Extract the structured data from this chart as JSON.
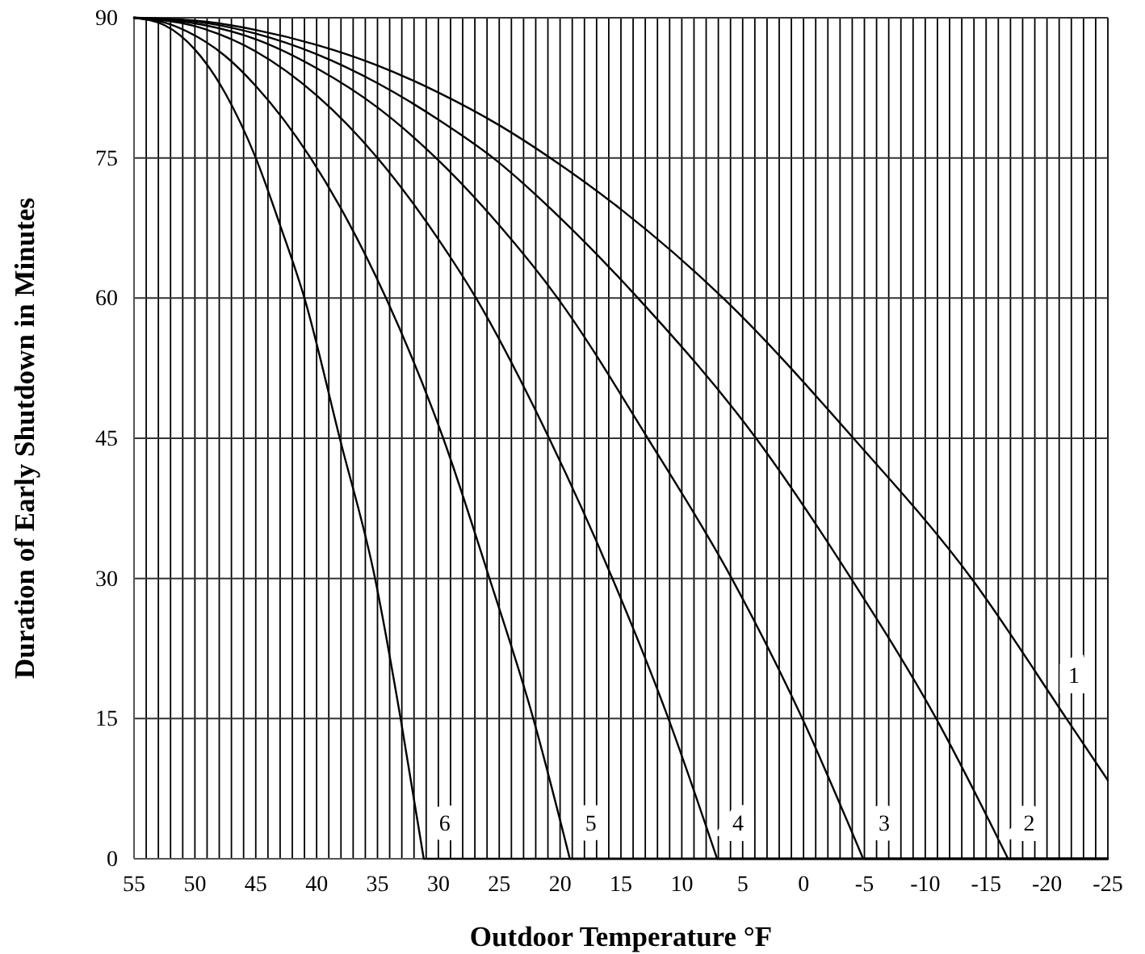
{
  "chart_data": {
    "type": "line",
    "xlabel": "Outdoor Temperature °F",
    "ylabel": "Duration of Early Shutdown in Minutes",
    "xlim": [
      55,
      -25
    ],
    "ylim": [
      0,
      90
    ],
    "xticks": [
      55,
      {
        "value": 54,
        "label": null
      },
      {
        "value": 53,
        "label": null
      },
      {
        "value": 52,
        "label": null
      },
      {
        "value": 51,
        "label": null
      },
      50,
      {
        "value": 49,
        "label": null
      },
      {
        "value": 48,
        "label": null
      },
      {
        "value": 47,
        "label": null
      },
      {
        "value": 46,
        "label": null
      },
      45,
      {
        "value": 44,
        "label": null
      },
      {
        "value": 43,
        "label": null
      },
      {
        "value": 42,
        "label": null
      },
      {
        "value": 41,
        "label": null
      },
      40,
      {
        "value": 39,
        "label": null
      },
      {
        "value": 38,
        "label": null
      },
      {
        "value": 37,
        "label": null
      },
      {
        "value": 36,
        "label": null
      },
      35,
      {
        "value": 34,
        "label": null
      },
      {
        "value": 33,
        "label": null
      },
      {
        "value": 32,
        "label": null
      },
      {
        "value": 31,
        "label": null
      },
      30,
      {
        "value": 29,
        "label": null
      },
      {
        "value": 28,
        "label": null
      },
      {
        "value": 27,
        "label": null
      },
      {
        "value": 26,
        "label": null
      },
      25,
      {
        "value": 24,
        "label": null
      },
      {
        "value": 23,
        "label": null
      },
      {
        "value": 22,
        "label": null
      },
      {
        "value": 21,
        "label": null
      },
      20,
      {
        "value": 19,
        "label": null
      },
      {
        "value": 18,
        "label": null
      },
      {
        "value": 17,
        "label": null
      },
      {
        "value": 16,
        "label": null
      },
      15,
      {
        "value": 14,
        "label": null
      },
      {
        "value": 13,
        "label": null
      },
      {
        "value": 12,
        "label": null
      },
      {
        "value": 11,
        "label": null
      },
      10,
      {
        "value": 9,
        "label": null
      },
      {
        "value": 8,
        "label": null
      },
      {
        "value": 7,
        "label": null
      },
      {
        "value": 6,
        "label": null
      },
      5,
      {
        "value": 4,
        "label": null
      },
      {
        "value": 3,
        "label": null
      },
      {
        "value": 2,
        "label": null
      },
      {
        "value": 1,
        "label": null
      },
      0,
      {
        "value": -1,
        "label": null
      },
      {
        "value": -2,
        "label": null
      },
      {
        "value": -3,
        "label": null
      },
      {
        "value": -4,
        "label": null
      },
      -5,
      {
        "value": -6,
        "label": null
      },
      {
        "value": -7,
        "label": null
      },
      {
        "value": -8,
        "label": null
      },
      {
        "value": -9,
        "label": null
      },
      -10,
      {
        "value": -11,
        "label": null
      },
      {
        "value": -12,
        "label": null
      },
      {
        "value": -13,
        "label": null
      },
      {
        "value": -14,
        "label": null
      },
      -15,
      {
        "value": -16,
        "label": null
      },
      {
        "value": -17,
        "label": null
      },
      {
        "value": -18,
        "label": null
      },
      {
        "value": -19,
        "label": null
      },
      -20,
      {
        "value": -21,
        "label": null
      },
      {
        "value": -22,
        "label": null
      },
      {
        "value": -23,
        "label": null
      },
      {
        "value": -24,
        "label": null
      },
      -25
    ],
    "yticks": [
      0,
      15,
      30,
      45,
      60,
      75,
      90
    ],
    "grid": true,
    "series": [
      {
        "name": "1",
        "color": "#000000",
        "x": [
          55,
          50,
          45,
          40,
          35,
          30,
          25,
          20.8,
          15,
          6.6,
          -4.1,
          -13.8,
          -21.6,
          -25
        ],
        "values": [
          90,
          89.7,
          88.7,
          87.1,
          84.9,
          82.0,
          78.5,
          75,
          69.5,
          60,
          45,
          30,
          15,
          8.4
        ]
      },
      {
        "name": "2",
        "color": "#000000",
        "x": [
          55,
          50,
          45,
          40,
          35,
          30,
          25.5,
          20,
          13.6,
          3.9,
          -3.9,
          -10.9,
          -16.8,
          -25
        ],
        "values": [
          90,
          89.6,
          88.3,
          86.1,
          83.0,
          79.1,
          75,
          68.6,
          60,
          45,
          30,
          15,
          0,
          0
        ]
      },
      {
        "name": "3",
        "color": "#000000",
        "x": [
          55,
          50,
          45,
          40,
          35,
          30.2,
          25,
          20.2,
          12.8,
          5.9,
          0.1,
          -4.9,
          -25
        ],
        "values": [
          90,
          89.4,
          87.7,
          84.6,
          80.4,
          75,
          67.8,
          60,
          45,
          30,
          15,
          0,
          0
        ]
      },
      {
        "name": "4",
        "color": "#000000",
        "x": [
          55,
          50,
          45,
          40,
          35,
          30,
          26.9,
          20.9,
          15.7,
          11.1,
          7.1,
          -25
        ],
        "values": [
          90,
          89.1,
          86.4,
          81.7,
          75,
          66.3,
          60,
          45,
          30,
          15,
          0,
          0
        ]
      },
      {
        "name": "5",
        "color": "#000000",
        "x": [
          55,
          52.5,
          50,
          47.5,
          45,
          40.5,
          37.5,
          34.3,
          29.6,
          25.8,
          22.2,
          19.2,
          -25
        ],
        "values": [
          90,
          89.5,
          88.1,
          85.9,
          82.7,
          75,
          68.4,
          60,
          45,
          30,
          15,
          0,
          0
        ]
      },
      {
        "name": "6",
        "color": "#000000",
        "x": [
          55,
          52.5,
          50,
          47.5,
          45,
          43,
          41,
          38.1,
          35.2,
          33.1,
          31.2,
          -25
        ],
        "values": [
          90,
          89.2,
          86.6,
          81.9,
          75,
          67.8,
          60,
          45,
          30,
          15,
          0,
          0
        ]
      }
    ]
  }
}
